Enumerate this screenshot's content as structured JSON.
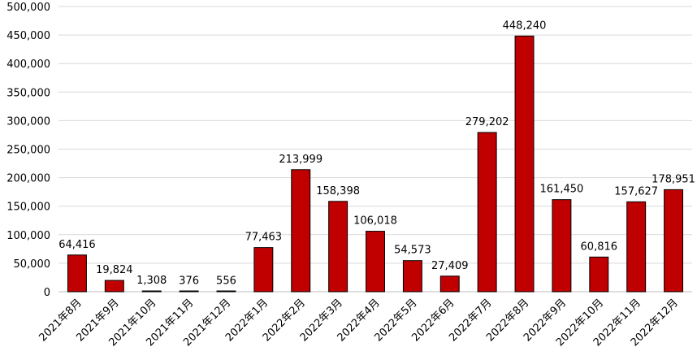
{
  "chart_data": {
    "type": "bar",
    "title": "",
    "xlabel": "",
    "ylabel": "",
    "ylim": [
      0,
      500000
    ],
    "y_ticks": [
      0,
      50000,
      100000,
      150000,
      200000,
      250000,
      300000,
      350000,
      400000,
      450000,
      500000
    ],
    "y_tick_labels": [
      "0",
      "50,000",
      "100,000",
      "150,000",
      "200,000",
      "250,000",
      "300,000",
      "350,000",
      "400,000",
      "450,000",
      "500,000"
    ],
    "grid": true,
    "legend": "none",
    "bar_color": "#C00000",
    "categories": [
      "2021年8月",
      "2021年9月",
      "2021年10月",
      "2021年11月",
      "2021年12月",
      "2022年1月",
      "2022年2月",
      "2022年3月",
      "2022年4月",
      "2022年5月",
      "2022年6月",
      "2022年7月",
      "2022年8月",
      "2022年9月",
      "2022年10月",
      "2022年11月",
      "2022年12月"
    ],
    "values": [
      64416,
      19824,
      1308,
      376,
      556,
      77463,
      213999,
      158398,
      106018,
      54573,
      27409,
      279202,
      448240,
      161450,
      60816,
      157627,
      178951
    ],
    "data_labels": [
      "64,416",
      "19,824",
      "1,308",
      "376",
      "556",
      "77,463",
      "213,999",
      "158,398",
      "106,018",
      "54,573",
      "27,409",
      "279,202",
      "448,240",
      "161,450",
      "60,816",
      "157,627",
      "178,951"
    ]
  }
}
